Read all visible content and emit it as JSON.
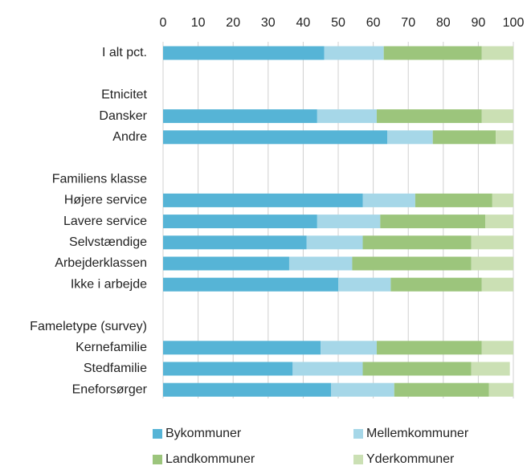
{
  "chart_data": {
    "type": "stacked-barh",
    "categories": [
      "I alt pct.",
      null,
      "Etnicitet",
      "Dansker",
      "Andre",
      null,
      "Familiens klasse",
      "Højere service",
      "Lavere service",
      "Selvstændige",
      "Arbejderklassen",
      "Ikke i arbejde",
      null,
      "Fameletype (survey)",
      "Kernefamilie",
      "Stedfamilie",
      "Eneforsørger"
    ],
    "series": [
      {
        "name": "Bykommuner",
        "color": "#56b4d6",
        "values": [
          46,
          null,
          null,
          44,
          64,
          null,
          null,
          57,
          44,
          41,
          36,
          50,
          null,
          null,
          45,
          37,
          48
        ]
      },
      {
        "name": "Mellemkommuner",
        "color": "#a6d7e8",
        "values": [
          17,
          null,
          null,
          17,
          13,
          null,
          null,
          15,
          18,
          16,
          18,
          15,
          null,
          null,
          16,
          20,
          18
        ]
      },
      {
        "name": "Landkommuner",
        "color": "#9cc57c",
        "values": [
          28,
          null,
          null,
          30,
          18,
          null,
          null,
          22,
          30,
          31,
          34,
          26,
          null,
          null,
          30,
          31,
          27
        ]
      },
      {
        "name": "Yderkommuner",
        "color": "#cbe0b4",
        "values": [
          9,
          null,
          null,
          9,
          5,
          null,
          null,
          6,
          8,
          12,
          12,
          9,
          null,
          null,
          9,
          11,
          7
        ]
      }
    ],
    "xlim": [
      0,
      100
    ],
    "xticks": [
      0,
      10,
      20,
      30,
      40,
      50,
      60,
      70,
      80,
      90,
      100
    ],
    "grid": true
  }
}
